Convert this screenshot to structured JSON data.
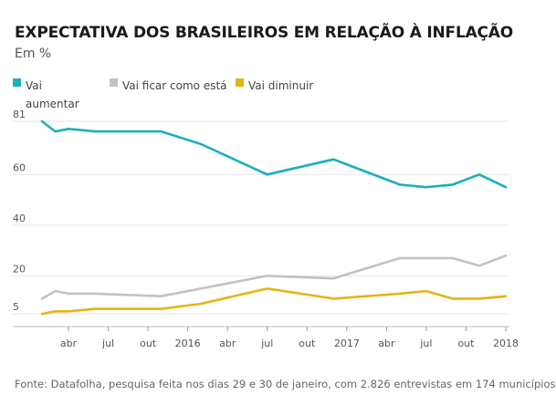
{
  "title": "EXPECTATIVA DOS BRASILEIROS EM RELAÇÃO À INFLAÇÃO",
  "subtitle": "Em %",
  "source": "Fonte: Datafolha, pesquisa feita nos dias 29 e 30 de janeiro, com 2.826 entrevistas em 174 municípios",
  "chart_data": {
    "type": "line",
    "ylim": [
      0,
      81
    ],
    "y_ticks": [
      5,
      20,
      40,
      60,
      81
    ],
    "y_tick_labels": [
      "5",
      "20",
      "40",
      "60",
      "81"
    ],
    "grid": "horizontal",
    "legend_position": "top-left",
    "x_ticks": [
      {
        "date": "2015-04",
        "label": "abr"
      },
      {
        "date": "2015-07",
        "label": "jul"
      },
      {
        "date": "2015-10",
        "label": "out"
      },
      {
        "date": "2016-01",
        "label": "2016"
      },
      {
        "date": "2016-04",
        "label": "abr"
      },
      {
        "date": "2016-07",
        "label": "jul"
      },
      {
        "date": "2016-10",
        "label": "out"
      },
      {
        "date": "2017-01",
        "label": "2017"
      },
      {
        "date": "2017-04",
        "label": "abr"
      },
      {
        "date": "2017-07",
        "label": "jul"
      },
      {
        "date": "2017-10",
        "label": "out"
      },
      {
        "date": "2018-01",
        "label": "2018"
      }
    ],
    "x_range": [
      "2015-02",
      "2018-01"
    ],
    "series": [
      {
        "name": "Vai aumentar",
        "color": "#1ab0bc",
        "points": [
          {
            "date": "2015-02",
            "value": 81
          },
          {
            "date": "2015-03",
            "value": 77
          },
          {
            "date": "2015-04",
            "value": 78
          },
          {
            "date": "2015-06",
            "value": 77
          },
          {
            "date": "2015-11",
            "value": 77
          },
          {
            "date": "2016-02",
            "value": 72
          },
          {
            "date": "2016-07",
            "value": 60
          },
          {
            "date": "2016-12",
            "value": 66
          },
          {
            "date": "2017-05",
            "value": 56
          },
          {
            "date": "2017-07",
            "value": 55
          },
          {
            "date": "2017-09",
            "value": 56
          },
          {
            "date": "2017-11",
            "value": 60
          },
          {
            "date": "2018-01",
            "value": 55
          }
        ]
      },
      {
        "name": "Vai ficar como está",
        "color": "#c2c2c2",
        "points": [
          {
            "date": "2015-02",
            "value": 11
          },
          {
            "date": "2015-03",
            "value": 14
          },
          {
            "date": "2015-04",
            "value": 13
          },
          {
            "date": "2015-06",
            "value": 13
          },
          {
            "date": "2015-11",
            "value": 12
          },
          {
            "date": "2016-02",
            "value": 15
          },
          {
            "date": "2016-07",
            "value": 20
          },
          {
            "date": "2016-12",
            "value": 19
          },
          {
            "date": "2017-05",
            "value": 27
          },
          {
            "date": "2017-07",
            "value": 27
          },
          {
            "date": "2017-09",
            "value": 27
          },
          {
            "date": "2017-11",
            "value": 24
          },
          {
            "date": "2018-01",
            "value": 28
          }
        ]
      },
      {
        "name": "Vai diminuir",
        "color": "#e6b417",
        "points": [
          {
            "date": "2015-02",
            "value": 5
          },
          {
            "date": "2015-03",
            "value": 6
          },
          {
            "date": "2015-04",
            "value": 6
          },
          {
            "date": "2015-06",
            "value": 7
          },
          {
            "date": "2015-11",
            "value": 7
          },
          {
            "date": "2016-02",
            "value": 9
          },
          {
            "date": "2016-07",
            "value": 15
          },
          {
            "date": "2016-12",
            "value": 11
          },
          {
            "date": "2017-05",
            "value": 13
          },
          {
            "date": "2017-07",
            "value": 14
          },
          {
            "date": "2017-09",
            "value": 11
          },
          {
            "date": "2017-11",
            "value": 11
          },
          {
            "date": "2018-01",
            "value": 12
          }
        ]
      }
    ]
  }
}
